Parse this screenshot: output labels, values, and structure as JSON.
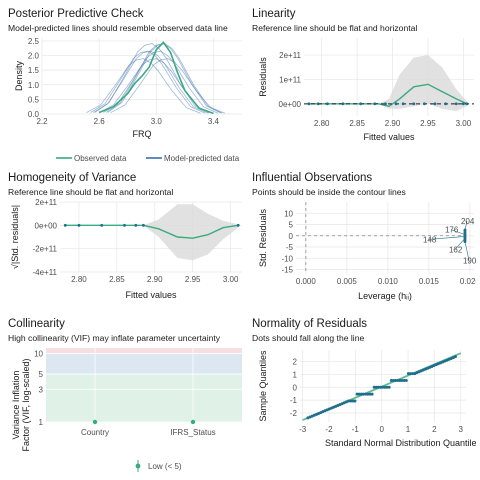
{
  "panels": {
    "ppc": {
      "title": "Posterior Predictive Check",
      "subtitle": "Model-predicted lines should resemble observed data line"
    },
    "lin": {
      "title": "Linearity",
      "subtitle": "Reference line should be flat and horizontal"
    },
    "hov": {
      "title": "Homogeneity of Variance",
      "subtitle": "Reference line should be flat and horizontal"
    },
    "infl": {
      "title": "Influential Observations",
      "subtitle": "Points should be inside the contour lines"
    },
    "col": {
      "title": "Collinearity",
      "subtitle": "High collinearity (VIF) may inflate parameter uncertainty"
    },
    "norm": {
      "title": "Normality of Residuals",
      "subtitle": "Dots should fall along the line"
    }
  },
  "colors": {
    "green": "#3aaa80",
    "blue": "#3a6fb0",
    "band": "#d9d9d9",
    "grid": "#e6e6e6",
    "teal": "#1f6e8c"
  },
  "chart_data": [
    {
      "id": "ppc",
      "type": "line",
      "xlabel": "FRQ",
      "ylabel": "Density",
      "xlim": [
        2.2,
        3.6
      ],
      "ylim": [
        0,
        2.6
      ],
      "xticks": [
        "2.2",
        "2.6",
        "3.0",
        "3.4"
      ],
      "yticks": [
        "0.0",
        "0.5",
        "1.0",
        "1.5",
        "2.0",
        "2.5"
      ],
      "legend": {
        "position": "bottom",
        "items": [
          "Observed data",
          "Model-predicted data"
        ]
      },
      "series": [
        {
          "name": "Observed data",
          "x": [
            2.6,
            2.7,
            2.8,
            2.85,
            2.9,
            2.95,
            3.0,
            3.05,
            3.1,
            3.15,
            3.2,
            3.3,
            3.4
          ],
          "y": [
            0.05,
            0.25,
            0.7,
            1.05,
            1.3,
            1.6,
            2.2,
            2.45,
            2.1,
            1.4,
            0.8,
            0.2,
            0.02
          ]
        },
        {
          "name": "Model-predicted data",
          "x": [
            2.6,
            2.7,
            2.8,
            2.9,
            2.95,
            3.0,
            3.05,
            3.1,
            3.2,
            3.3,
            3.4
          ],
          "y": [
            0.05,
            0.35,
            1.1,
            1.9,
            2.1,
            2.15,
            2.0,
            1.7,
            0.9,
            0.25,
            0.03
          ]
        }
      ]
    },
    {
      "id": "lin",
      "type": "line",
      "xlabel": "Fitted values",
      "ylabel": "Residuals",
      "xlim": [
        2.775,
        3.015
      ],
      "ylim": [
        -50000000000.0,
        270000000000.0
      ],
      "xticks": [
        "2.80",
        "2.85",
        "2.90",
        "2.95",
        "3.00"
      ],
      "yticks": [
        "0e+00",
        "1e+11",
        "2e+11"
      ],
      "x": [
        2.78,
        2.8,
        2.85,
        2.88,
        2.895,
        2.91,
        2.93,
        2.95,
        2.97,
        2.99,
        3.005
      ],
      "y": [
        0,
        0,
        0,
        0,
        -10000000000.0,
        20000000000.0,
        70000000000.0,
        80000000000.0,
        50000000000.0,
        20000000000.0,
        0
      ],
      "band_upper": [
        0,
        0,
        0,
        0,
        20000000000.0,
        120000000000.0,
        190000000000.0,
        200000000000.0,
        150000000000.0,
        60000000000.0,
        10000000000.0
      ],
      "band_lower": [
        0,
        0,
        0,
        0,
        -20000000000.0,
        -20000000000.0,
        -10000000000.0,
        0,
        -20000000000.0,
        -30000000000.0,
        -10000000000.0
      ]
    },
    {
      "id": "hov",
      "type": "line",
      "xlabel": "Fitted values",
      "ylabel": "√|Std. residuals|",
      "xlim": [
        2.775,
        3.015
      ],
      "ylim": [
        -400000000000.0,
        200000000000.0
      ],
      "xticks": [
        "2.80",
        "2.85",
        "2.90",
        "2.95",
        "3.00"
      ],
      "yticks": [
        "-4e+11",
        "-2e+11",
        "0e+00",
        "2e+11"
      ],
      "x": [
        2.78,
        2.8,
        2.85,
        2.885,
        2.905,
        2.93,
        2.95,
        2.97,
        2.99,
        3.01
      ],
      "y": [
        0,
        0,
        0,
        0,
        -30000000000.0,
        -100000000000.0,
        -110000000000.0,
        -80000000000.0,
        -20000000000.0,
        0
      ],
      "band_upper": [
        0,
        0,
        0,
        0,
        50000000000.0,
        180000000000.0,
        180000000000.0,
        100000000000.0,
        40000000000.0,
        10000000000.0
      ],
      "band_lower": [
        0,
        0,
        0,
        0,
        -100000000000.0,
        -280000000000.0,
        -300000000000.0,
        -250000000000.0,
        -120000000000.0,
        -20000000000.0
      ]
    },
    {
      "id": "infl",
      "type": "scatter",
      "xlabel": "Leverage (hᵢᵢ)",
      "ylabel": "Std. Residuals",
      "xlim": [
        -0.0012,
        0.0205
      ],
      "ylim": [
        -17,
        15
      ],
      "xticks": [
        "0.000",
        "0.005",
        "0.010",
        "0.015",
        "0.020"
      ],
      "yticks": [
        "-15",
        "-10",
        "-5",
        "0",
        "5",
        "10"
      ],
      "labels": [
        {
          "id": "204",
          "x": 0.0194,
          "y": 2.5
        },
        {
          "id": "176",
          "x": 0.0194,
          "y": 0.5
        },
        {
          "id": "148",
          "x": 0.0194,
          "y": -0.3
        },
        {
          "id": "162",
          "x": 0.0194,
          "y": -1.2
        },
        {
          "id": "190",
          "x": 0.0194,
          "y": -2.5
        }
      ]
    },
    {
      "id": "col",
      "type": "scatter",
      "xlabel": "",
      "ylabel": "Variance Inflation Factor (VIF, log-scaled)",
      "yscale": "log",
      "ylim": [
        1,
        12
      ],
      "categories": [
        "Country",
        "IFRS_Status"
      ],
      "values": [
        1.0,
        1.0
      ],
      "yticks": [
        "1",
        "3",
        "5",
        "10"
      ],
      "zones": [
        {
          "from": 1,
          "to": 5,
          "color": "#e0f1e7"
        },
        {
          "from": 5,
          "to": 10,
          "color": "#dde7f2"
        },
        {
          "from": 10,
          "to": 12,
          "color": "#f6dfe0"
        }
      ],
      "legend": {
        "position": "bottom",
        "items": [
          "Low (< 5)"
        ]
      }
    },
    {
      "id": "norm",
      "type": "scatter",
      "xlabel": "Standard Normal Distribution Quantiles",
      "ylabel": "Sample Quantiles",
      "xlim": [
        -3.1,
        3.2
      ],
      "ylim": [
        -2.7,
        2.9
      ],
      "xticks": [
        "-3",
        "-2",
        "-1",
        "0",
        "1",
        "2",
        "3"
      ],
      "yticks": [
        "-2",
        "-1",
        "0",
        "1",
        "2"
      ],
      "reference_line": [
        [
          -3,
          -2.55
        ],
        [
          3,
          2.65
        ]
      ]
    }
  ]
}
